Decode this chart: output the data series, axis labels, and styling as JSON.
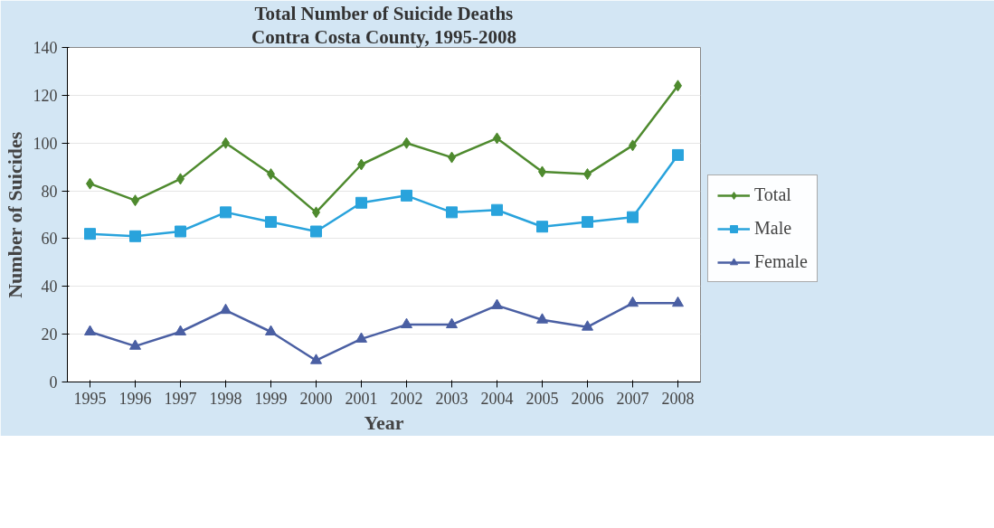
{
  "chart_data": {
    "type": "line",
    "title": "Total Number of Suicide Deaths",
    "subtitle": "Contra Costa County, 1995-2008",
    "xlabel": "Year",
    "ylabel": "Number of Suicides",
    "categories": [
      "1995",
      "1996",
      "1997",
      "1998",
      "1999",
      "2000",
      "2001",
      "2002",
      "2003",
      "2004",
      "2005",
      "2006",
      "2007",
      "2008"
    ],
    "ylim": [
      0,
      140
    ],
    "yticks": [
      0,
      20,
      40,
      60,
      80,
      100,
      120,
      140
    ],
    "grid": "y",
    "legend": "right",
    "line_style": "solid",
    "series": [
      {
        "name": "Total",
        "color": "#4e8a2e",
        "marker": "diamond",
        "values": [
          83,
          76,
          85,
          100,
          87,
          71,
          91,
          100,
          94,
          102,
          88,
          87,
          99,
          124
        ]
      },
      {
        "name": "Male",
        "color": "#29a3dc",
        "marker": "square",
        "values": [
          62,
          61,
          63,
          71,
          67,
          63,
          75,
          78,
          71,
          72,
          65,
          67,
          69,
          95
        ]
      },
      {
        "name": "Female",
        "color": "#4a5fa3",
        "marker": "triangle",
        "values": [
          21,
          15,
          21,
          30,
          21,
          9,
          18,
          24,
          24,
          32,
          26,
          23,
          33,
          33
        ]
      }
    ]
  }
}
